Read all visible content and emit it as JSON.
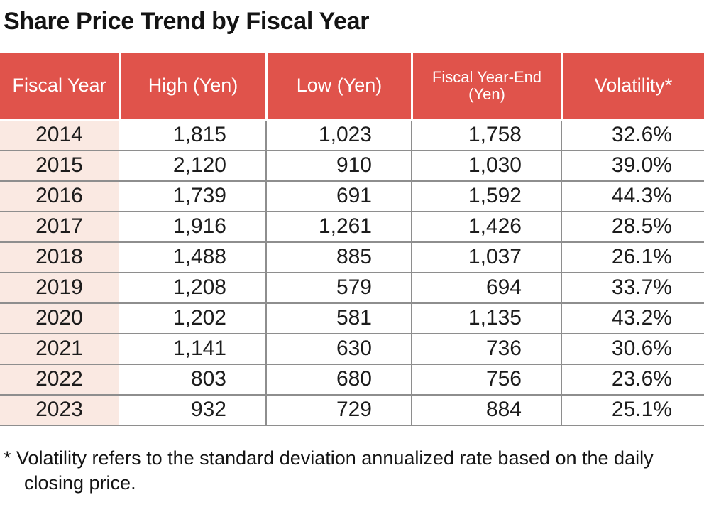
{
  "title": "Share Price Trend by Fiscal Year",
  "footnote": "* Volatility refers to the standard deviation annualized rate based on the daily closing price.",
  "chart_data": {
    "type": "table",
    "title": "Share Price Trend by Fiscal Year",
    "columns": [
      "Fiscal Year",
      "High (Yen)",
      "Low (Yen)",
      "Fiscal Year-End (Yen)",
      "Volatility*"
    ],
    "rows": [
      [
        "2014",
        "1,815",
        "1,023",
        "1,758",
        "32.6%"
      ],
      [
        "2015",
        "2,120",
        "910",
        "1,030",
        "39.0%"
      ],
      [
        "2016",
        "1,739",
        "691",
        "1,592",
        "44.3%"
      ],
      [
        "2017",
        "1,916",
        "1,261",
        "1,426",
        "28.5%"
      ],
      [
        "2018",
        "1,488",
        "885",
        "1,037",
        "26.1%"
      ],
      [
        "2019",
        "1,208",
        "579",
        "694",
        "33.7%"
      ],
      [
        "2020",
        "1,202",
        "581",
        "1,135",
        "43.2%"
      ],
      [
        "2021",
        "1,141",
        "630",
        "736",
        "30.6%"
      ],
      [
        "2022",
        "803",
        "680",
        "756",
        "23.6%"
      ],
      [
        "2023",
        "932",
        "729",
        "884",
        "25.1%"
      ]
    ],
    "footnote": "* Volatility refers to the standard deviation annualized rate based on the daily closing price.",
    "colors": {
      "header_bg": "#E0534B",
      "header_text": "#FFFFFF",
      "year_column_bg": "#FAE9E2",
      "grid_line": "#8E8E8E",
      "body_text": "#1C1C1C"
    }
  }
}
